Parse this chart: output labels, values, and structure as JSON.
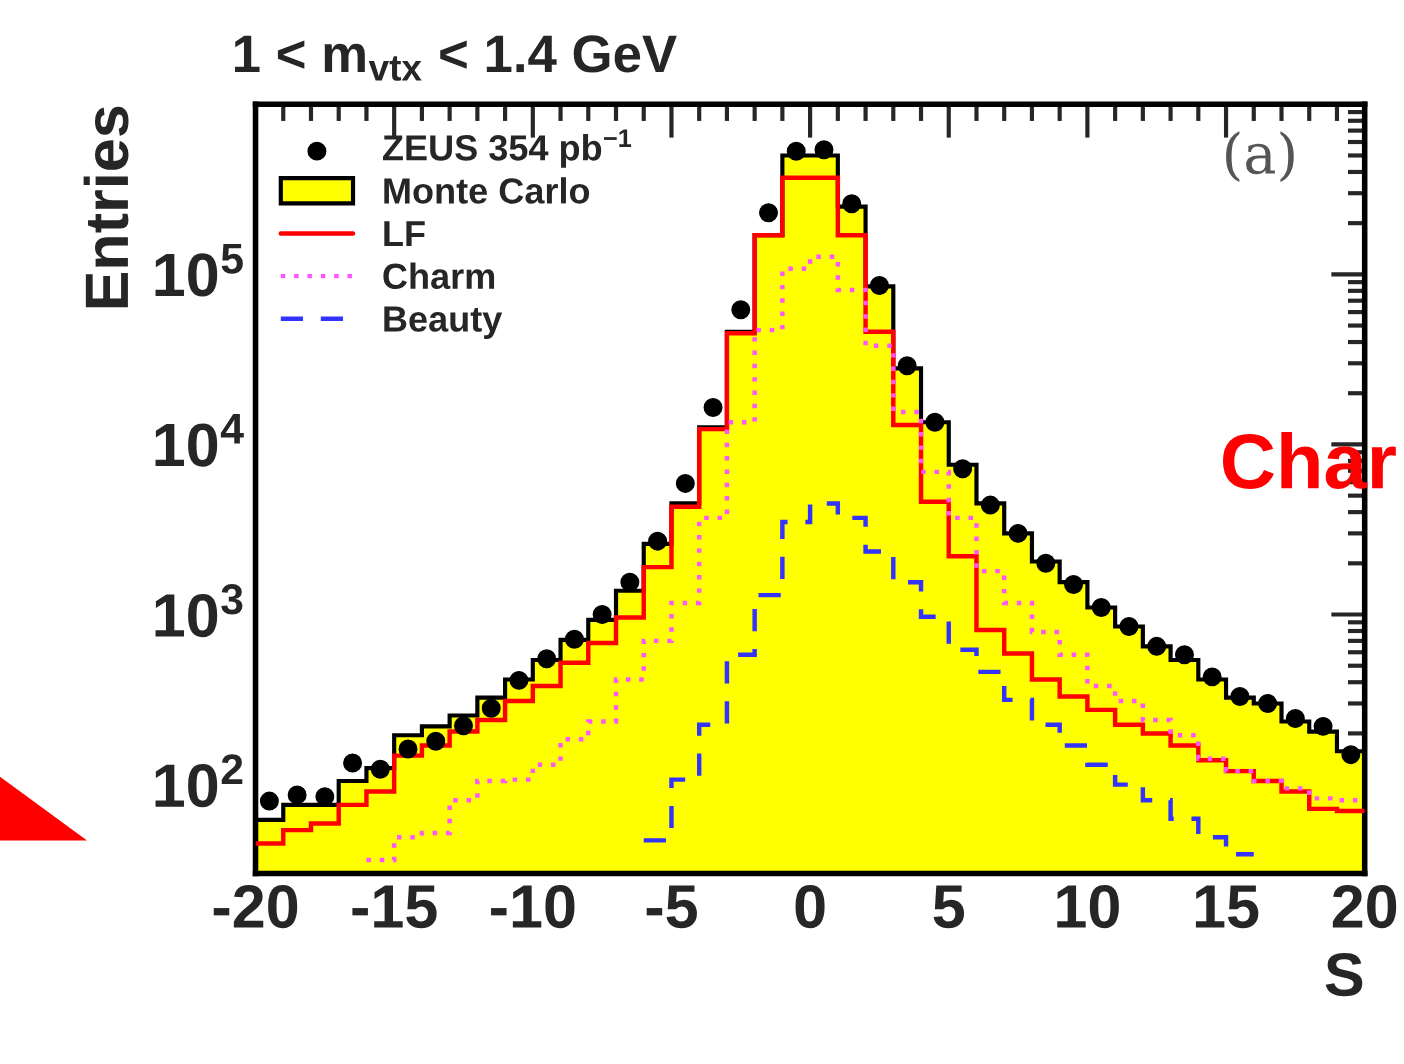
{
  "chart_data": {
    "type": "histogram",
    "title": "1 < m$_{vtx}$ < 1.4 GeV",
    "xlabel": "S",
    "ylabel": "Entries",
    "bins": [
      -20,
      -19,
      -18,
      -17,
      -16,
      -15,
      -14,
      -13,
      -12,
      -11,
      -10,
      -9,
      -8,
      -7,
      -6,
      -5,
      -4,
      -3,
      -2,
      -1,
      0,
      1,
      2,
      3,
      4,
      5,
      6,
      7,
      8,
      9,
      10,
      11,
      12,
      13,
      14,
      15,
      16,
      17,
      18,
      19,
      20
    ],
    "series": [
      {
        "name": "ZEUS 354 pb$^{−1}$",
        "type": "scatter",
        "color": "#000000",
        "marker": "circle",
        "x": [
          -19.5,
          -18.5,
          -17.5,
          -16.5,
          -15.5,
          -14.5,
          -13.5,
          -12.5,
          -11.5,
          -10.5,
          -9.5,
          -8.5,
          -7.5,
          -6.5,
          -5.5,
          -4.5,
          -3.5,
          -2.5,
          -1.5,
          -0.5,
          0.5,
          1.5,
          2.5,
          3.5,
          4.5,
          5.5,
          6.5,
          7.5,
          8.5,
          9.5,
          10.5,
          11.5,
          12.5,
          13.5,
          14.5,
          15.5,
          16.5,
          17.5,
          18.5,
          19.5
        ],
        "values": [
          80,
          87,
          85,
          134,
          123,
          162,
          180,
          222,
          281,
          410,
          550,
          715,
          1000,
          1550,
          2700,
          5900,
          16500,
          62000,
          230000,
          530000,
          540000,
          260000,
          86000,
          29000,
          13500,
          7200,
          4400,
          3000,
          2000,
          1500,
          1100,
          850,
          650,
          580,
          430,
          330,
          300,
          245,
          220,
          150
        ]
      },
      {
        "name": "Monte Carlo",
        "color": "#ffff00",
        "values": [
          62,
          76,
          76,
          105,
          125,
          195,
          220,
          255,
          325,
          415,
          540,
          710,
          930,
          1380,
          2600,
          4500,
          12600,
          46000,
          170000,
          500000,
          500000,
          250000,
          85000,
          28000,
          13500,
          7600,
          4500,
          3000,
          2050,
          1550,
          1100,
          850,
          650,
          540,
          415,
          325,
          300,
          235,
          205,
          157
        ]
      },
      {
        "name": "LF",
        "type": "histogram",
        "color": "#ff0000",
        "line_style": "solid",
        "values": [
          45,
          54,
          59,
          76,
          91,
          148,
          170,
          205,
          240,
          310,
          380,
          520,
          680,
          960,
          1900,
          4300,
          12300,
          45000,
          170000,
          370000,
          370000,
          170000,
          46000,
          13000,
          4600,
          2200,
          810,
          590,
          415,
          330,
          275,
          225,
          200,
          170,
          139,
          120,
          105,
          91,
          72,
          70
        ]
      },
      {
        "name": "Charm",
        "type": "histogram",
        "color": "#ff55ff",
        "line_style": "dotted",
        "bins": [
          -16,
          -15,
          -14,
          -13,
          -12,
          -11,
          -10,
          -9,
          -8,
          -7,
          -6,
          -5,
          -4,
          -3,
          -2,
          -1,
          0,
          1,
          2,
          3,
          4,
          5,
          6,
          7,
          8,
          9,
          10,
          11,
          12,
          13,
          14,
          15,
          16,
          17,
          18,
          19,
          20
        ],
        "values": [
          36,
          49,
          52,
          81,
          105,
          107,
          131,
          185,
          235,
          415,
          700,
          1170,
          3700,
          13500,
          47000,
          108000,
          127000,
          81000,
          38000,
          15500,
          6900,
          3700,
          1800,
          1170,
          790,
          580,
          380,
          310,
          240,
          195,
          142,
          120,
          105,
          95,
          83,
          81
        ]
      },
      {
        "name": "Beauty",
        "type": "histogram",
        "color": "#3333ff",
        "line_style": "dashed",
        "bins": [
          -6,
          -5,
          -4,
          -3,
          -2,
          -1,
          0,
          1,
          2,
          3,
          4,
          5,
          6,
          7,
          8,
          9,
          10,
          11,
          12,
          13,
          14,
          15,
          16
        ],
        "values": [
          47,
          107,
          225,
          580,
          1300,
          3500,
          4500,
          3700,
          2350,
          1550,
          970,
          620,
          460,
          315,
          225,
          170,
          131,
          100,
          81,
          63,
          49,
          39
        ]
      }
    ],
    "log": "y",
    "xlim": [
      -20,
      20
    ],
    "ylim": [
      30,
      1000000
    ],
    "xticks": [
      -20,
      -15,
      -10,
      -5,
      0,
      5,
      10,
      15,
      20
    ],
    "yticks": [
      {
        "value": 100,
        "label": "10$^{2}$"
      },
      {
        "value": 1000,
        "label": "10$^{3}$"
      },
      {
        "value": 10000,
        "label": "10$^{4}$"
      },
      {
        "value": 100000,
        "label": "10$^{5}$"
      }
    ],
    "grid": false,
    "legend": "top left",
    "annotations": [
      "(a)",
      "Char"
    ]
  }
}
